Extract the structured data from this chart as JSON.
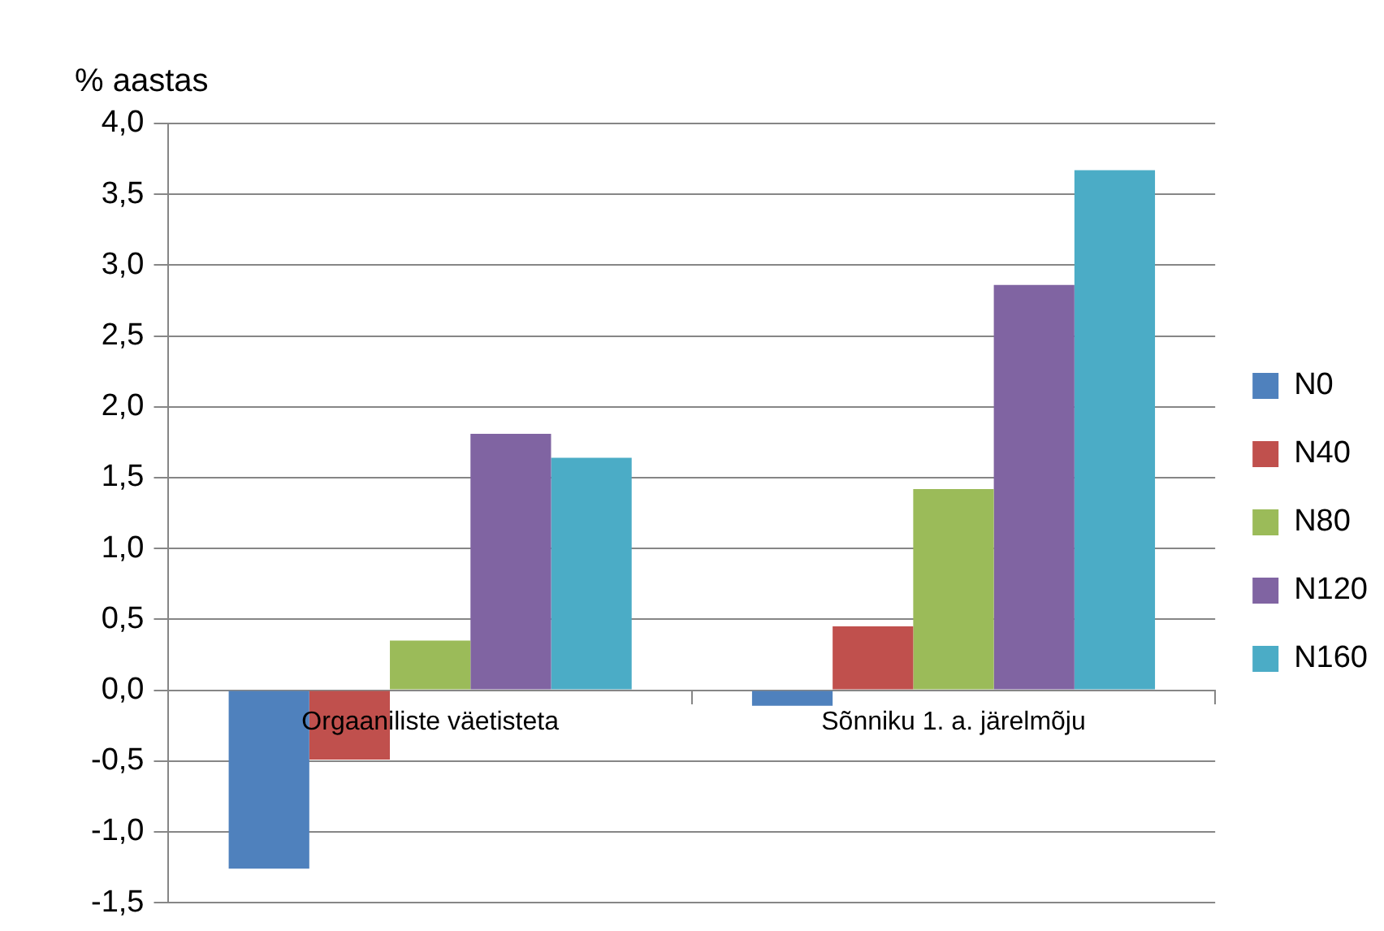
{
  "chart_data": {
    "type": "bar",
    "ylabel": "% aastas",
    "categories": [
      "Orgaaniliste väetisteta",
      "Sõnniku 1. a. järelmõju"
    ],
    "series": [
      {
        "name": "N0",
        "color": "#4f81bd",
        "values": [
          -1.26,
          -0.11
        ]
      },
      {
        "name": "N40",
        "color": "#c0504d",
        "values": [
          -0.49,
          0.45
        ]
      },
      {
        "name": "N80",
        "color": "#9bbb59",
        "values": [
          0.35,
          1.42
        ]
      },
      {
        "name": "N120",
        "color": "#8064a2",
        "values": [
          1.81,
          2.86
        ]
      },
      {
        "name": "N160",
        "color": "#4bacc6",
        "values": [
          1.64,
          3.67
        ]
      }
    ],
    "ylim": [
      -1.5,
      4
    ],
    "yticks": [
      {
        "value": -1.5,
        "label": "-1,5"
      },
      {
        "value": -1,
        "label": "-1,0"
      },
      {
        "value": -0.5,
        "label": "-0,5"
      },
      {
        "value": 0,
        "label": "0,0"
      },
      {
        "value": 0.5,
        "label": "0,5"
      },
      {
        "value": 1,
        "label": "1,0"
      },
      {
        "value": 1.5,
        "label": "1,5"
      },
      {
        "value": 2,
        "label": "2,0"
      },
      {
        "value": 2.5,
        "label": "2,5"
      },
      {
        "value": 3,
        "label": "3,0"
      },
      {
        "value": 3.5,
        "label": "3,5"
      },
      {
        "value": 4,
        "label": "4,0"
      }
    ],
    "grid": "y",
    "legend": "right"
  }
}
